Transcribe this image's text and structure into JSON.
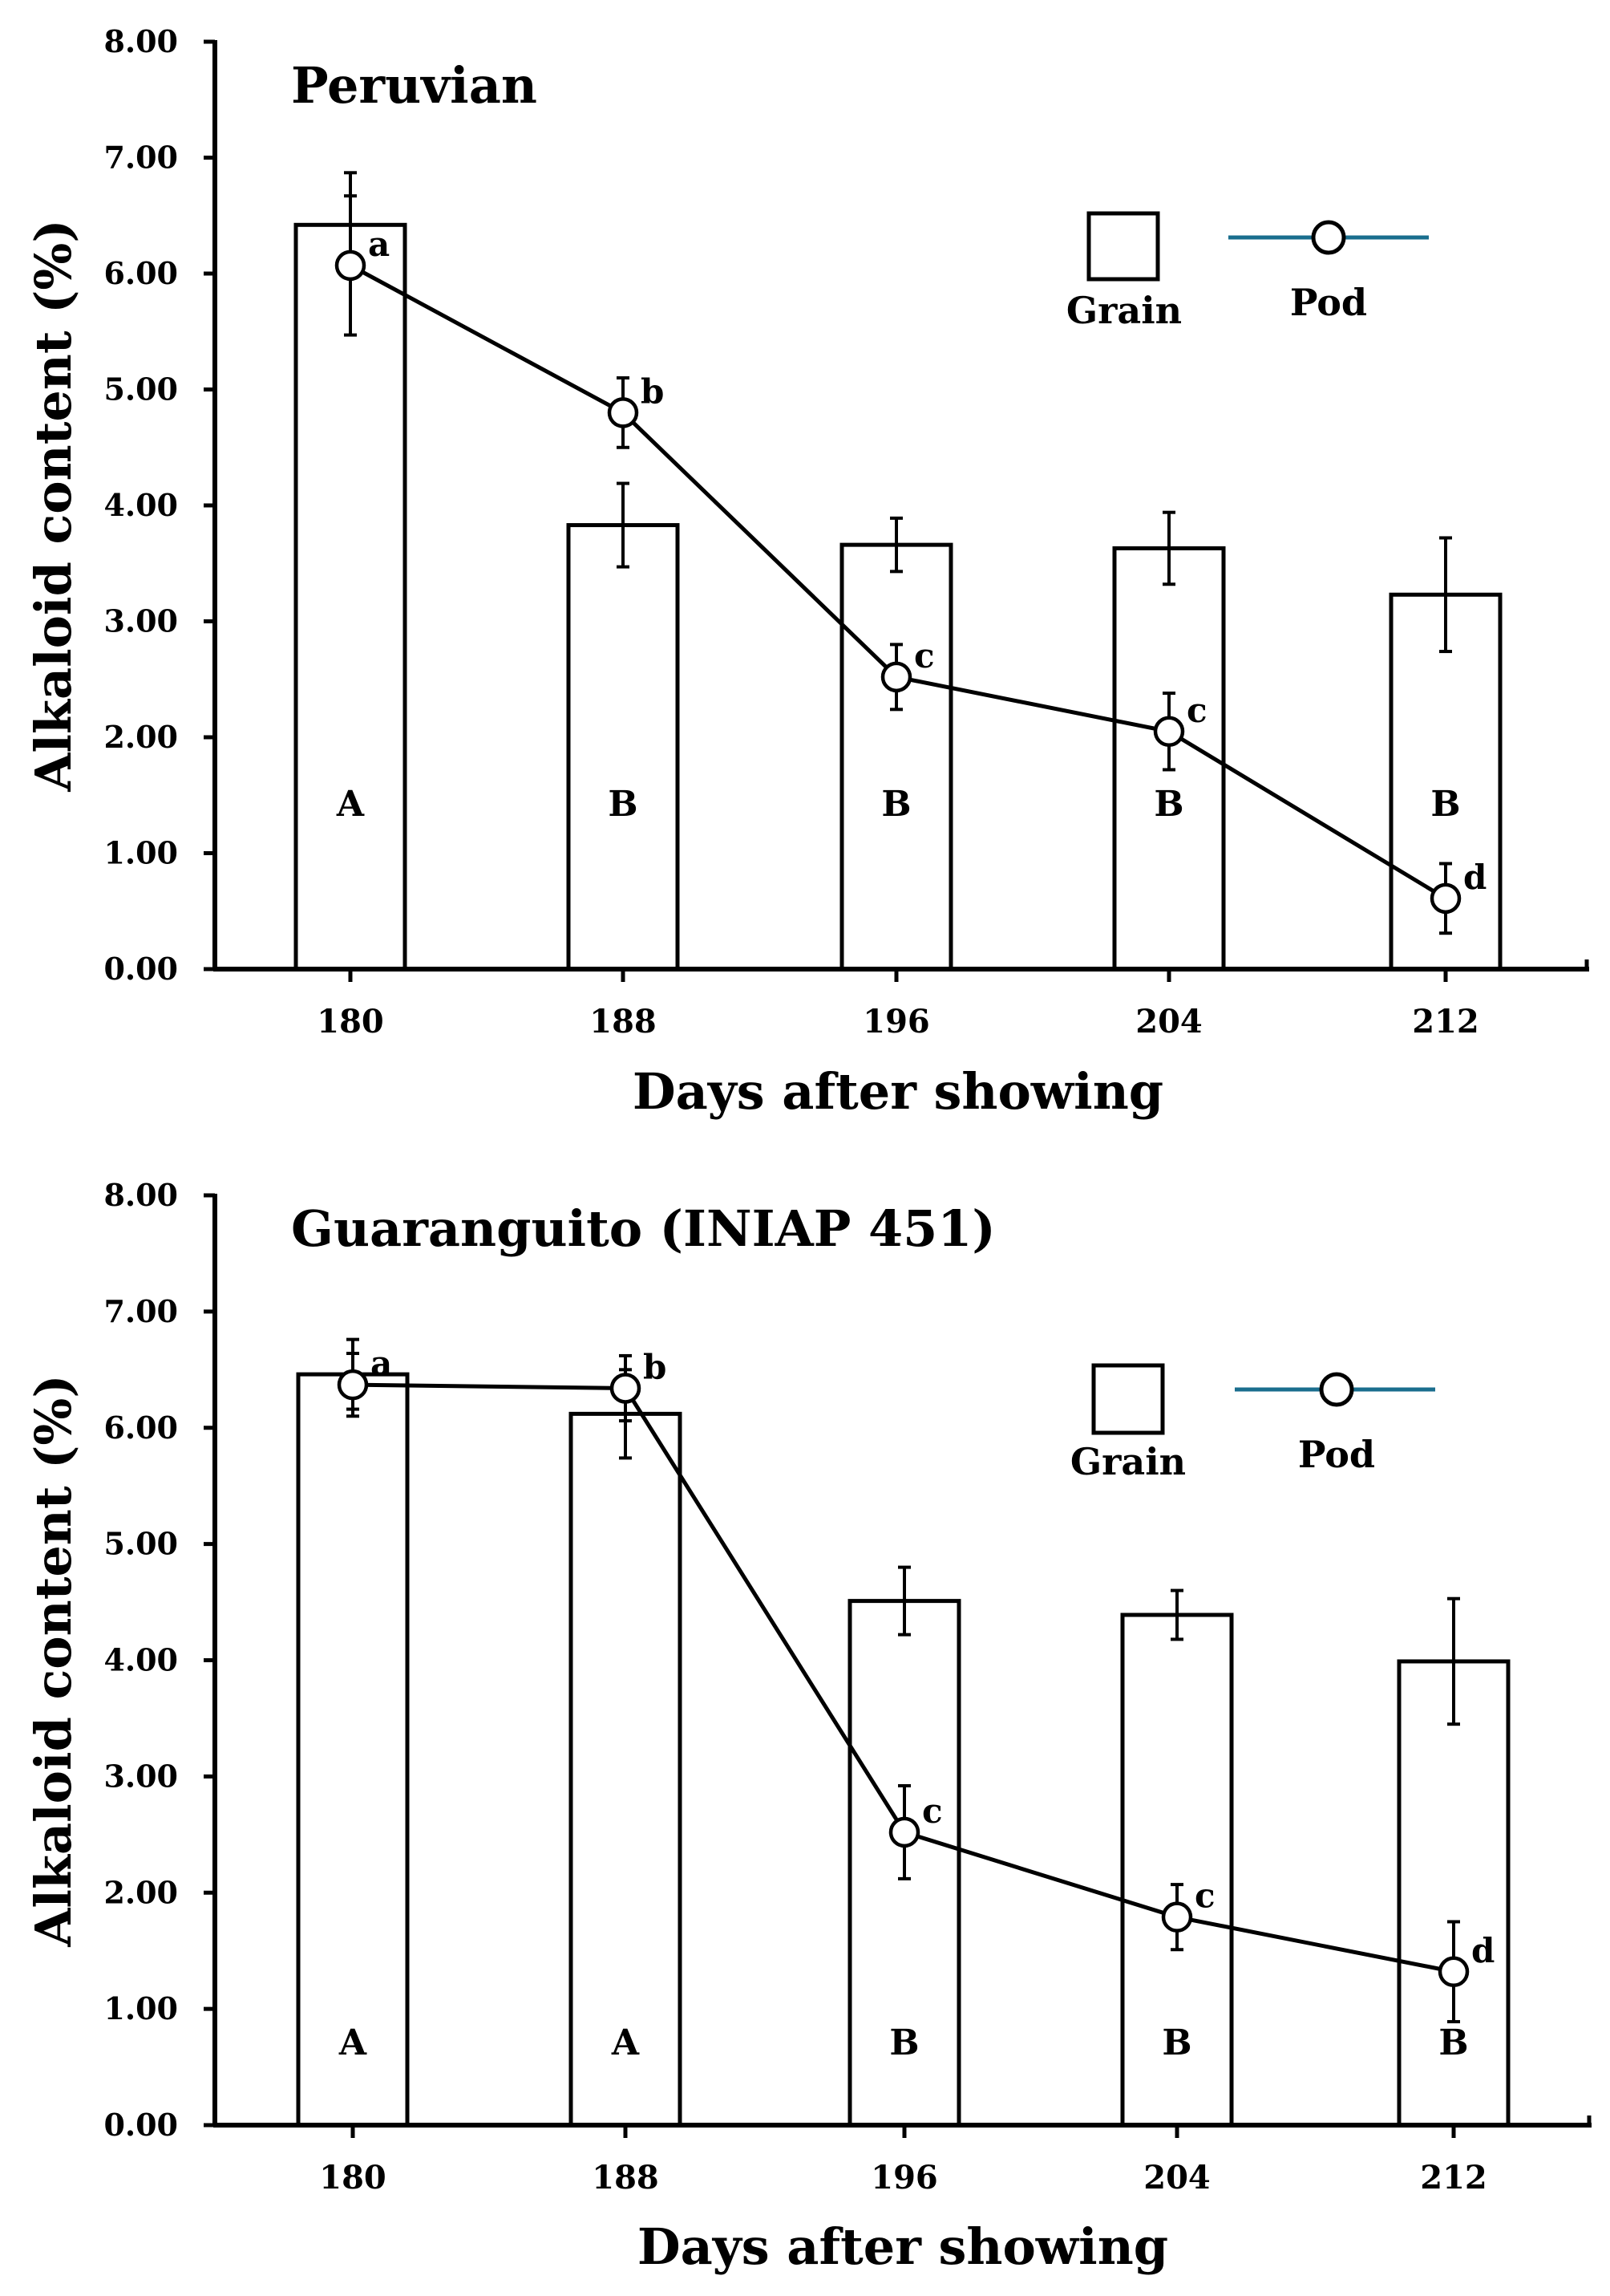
{
  "chart_data": [
    {
      "type": "bar",
      "title": "Peruvian",
      "xlabel": "Days after showing",
      "ylabel": "Alkaloid content (%)",
      "ylim": [
        0,
        8
      ],
      "yticks": [
        "0.00",
        "1.00",
        "2.00",
        "3.00",
        "4.00",
        "5.00",
        "6.00",
        "7.00",
        "8.00"
      ],
      "categories": [
        "180",
        "188",
        "196",
        "204",
        "212"
      ],
      "legend": {
        "position": "top-right",
        "grain_label": "Grain",
        "pod_label": "Pod"
      },
      "colors": {
        "bar_fill": "#ffffff",
        "stroke": "#000000",
        "legend_line": "#1a6e8e"
      },
      "series": [
        {
          "name": "Grain",
          "kind": "bar",
          "values": [
            6.42,
            3.83,
            3.66,
            3.63,
            3.23
          ],
          "errors": [
            0.45,
            0.36,
            0.23,
            0.31,
            0.49
          ],
          "letters": [
            "A",
            "B",
            "B",
            "B",
            "B"
          ]
        },
        {
          "name": "Pod",
          "kind": "line",
          "values": [
            6.07,
            4.8,
            2.52,
            2.05,
            0.61
          ],
          "errors": [
            0.6,
            0.3,
            0.28,
            0.33,
            0.3
          ],
          "letters": [
            "a",
            "b",
            "c",
            "c",
            "d"
          ]
        }
      ]
    },
    {
      "type": "bar",
      "title": "Guaranguito (INIAP 451)",
      "xlabel": "Days after showing",
      "ylabel": "Alkaloid content (%)",
      "ylim": [
        0,
        8
      ],
      "yticks": [
        "0.00",
        "1.00",
        "2.00",
        "3.00",
        "4.00",
        "5.00",
        "6.00",
        "7.00",
        "8.00"
      ],
      "categories": [
        "180",
        "188",
        "196",
        "204",
        "212"
      ],
      "legend": {
        "position": "top-right",
        "grain_label": "Grain",
        "pod_label": "Pod"
      },
      "colors": {
        "bar_fill": "#ffffff",
        "stroke": "#000000",
        "legend_line": "#1a6e8e"
      },
      "series": [
        {
          "name": "Grain",
          "kind": "bar",
          "values": [
            6.46,
            6.12,
            4.51,
            4.39,
            3.99
          ],
          "errors": [
            0.3,
            0.38,
            0.29,
            0.21,
            0.54
          ],
          "letters": [
            "A",
            "A",
            "B",
            "B",
            "B"
          ]
        },
        {
          "name": "Pod",
          "kind": "line",
          "values": [
            6.37,
            6.34,
            2.52,
            1.79,
            1.32
          ],
          "errors": [
            0.27,
            0.28,
            0.4,
            0.28,
            0.43
          ],
          "letters": [
            "a",
            "b",
            "c",
            "c",
            "d"
          ]
        }
      ]
    }
  ]
}
